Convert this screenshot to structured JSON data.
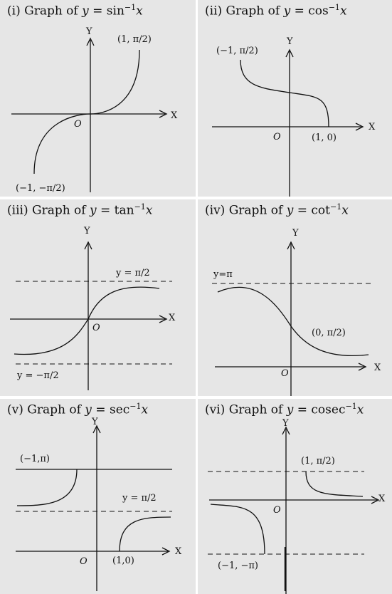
{
  "panels": [
    {
      "num": "(i)",
      "prefix": "Graph of ",
      "var": "y",
      "func": "sin",
      "sup": "−1",
      "arg": "x",
      "labels": {
        "x_axis": "X",
        "y_axis": "Y",
        "origin": "O",
        "top_point": "(1, π/2)",
        "bottom_point": "(−1, −π/2)"
      }
    },
    {
      "num": "(ii)",
      "prefix": "Graph of ",
      "var": "y",
      "func": "cos",
      "sup": "−1",
      "arg": "x",
      "labels": {
        "x_axis": "X",
        "y_axis": "Y",
        "origin": "O",
        "top_point": "(−1, π/2)",
        "right_point": "(1, 0)"
      }
    },
    {
      "num": "(iii)",
      "prefix": "Graph of ",
      "var": "y",
      "func": "tan",
      "sup": "−1",
      "arg": "x",
      "labels": {
        "x_axis": "X",
        "y_axis": "Y",
        "origin": "O",
        "upper_asymptote": "y = π/2",
        "lower_asymptote": "y = −π/2"
      }
    },
    {
      "num": "(iv)",
      "prefix": "Graph of ",
      "var": "y",
      "func": "cot",
      "sup": "−1",
      "arg": "x",
      "labels": {
        "x_axis": "X",
        "y_axis": "Y",
        "origin": "O",
        "upper_asymptote": "y=π",
        "mid_point": "(0, π/2)"
      }
    },
    {
      "num": "(v)",
      "prefix": "Graph of ",
      "var": "y",
      "func": "sec",
      "sup": "−1",
      "arg": "x",
      "labels": {
        "x_axis": "X",
        "y_axis": "Y",
        "origin": "O",
        "top_point": "(−1,π)",
        "mid_asymptote": "y = π/2",
        "right_point": "(1,0)"
      }
    },
    {
      "num": "(vi)",
      "prefix": "Graph of ",
      "var": "y",
      "func": "cosec",
      "sup": "−1",
      "arg": "x",
      "labels": {
        "x_axis": "X",
        "y_axis": "Y",
        "origin": "O",
        "top_point": "(1, π/2)",
        "bottom_point": "(−1, −π)"
      }
    }
  ]
}
